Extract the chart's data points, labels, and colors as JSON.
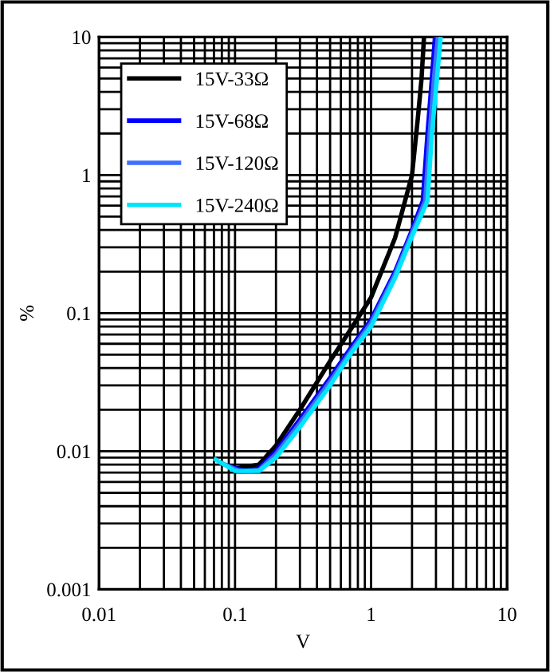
{
  "chart_data": {
    "type": "line",
    "xlabel": "V",
    "ylabel": "%",
    "log": "xy",
    "grid": true,
    "legend": "top left",
    "line_style": "solid",
    "marker": "none",
    "xlim": [
      0.01,
      10
    ],
    "ylim": [
      0.001,
      10
    ],
    "xticks": [
      0.01,
      0.1,
      1,
      10
    ],
    "yticks": [
      0.001,
      0.01,
      0.1,
      1,
      10
    ],
    "series": [
      {
        "name": "15V-33Ω",
        "color": "#000000",
        "x": [
          0.1,
          0.15,
          0.2,
          0.3,
          0.5,
          0.7,
          1,
          1.5,
          2,
          2.2,
          2.35,
          2.45
        ],
        "values": [
          0.0075,
          0.008,
          0.011,
          0.02,
          0.045,
          0.075,
          0.13,
          0.35,
          1.0,
          2.5,
          5,
          10
        ]
      },
      {
        "name": "15V-68Ω",
        "color": "#0000ff",
        "x": [
          0.09,
          0.12,
          0.15,
          0.2,
          0.3,
          0.5,
          0.7,
          1,
          1.5,
          2,
          2.4,
          2.6,
          2.8,
          2.95
        ],
        "values": [
          0.0078,
          0.0072,
          0.0075,
          0.01,
          0.017,
          0.034,
          0.055,
          0.09,
          0.2,
          0.4,
          0.65,
          2,
          5,
          10
        ]
      },
      {
        "name": "15V-120Ω",
        "color": "#3f6fff",
        "x": [
          0.08,
          0.11,
          0.15,
          0.2,
          0.3,
          0.5,
          0.7,
          1,
          1.5,
          2,
          2.5,
          2.7,
          2.9,
          3.1
        ],
        "values": [
          0.0082,
          0.0071,
          0.0073,
          0.0095,
          0.016,
          0.032,
          0.052,
          0.085,
          0.19,
          0.38,
          0.65,
          2,
          5,
          10
        ]
      },
      {
        "name": "15V-240Ω",
        "color": "#00e5ff",
        "x": [
          0.072,
          0.1,
          0.15,
          0.2,
          0.3,
          0.5,
          0.7,
          1,
          1.5,
          2,
          2.6,
          2.8,
          3.05,
          3.25
        ],
        "values": [
          0.0087,
          0.0072,
          0.0072,
          0.009,
          0.015,
          0.03,
          0.05,
          0.08,
          0.18,
          0.36,
          0.65,
          2,
          5,
          10
        ]
      }
    ]
  }
}
